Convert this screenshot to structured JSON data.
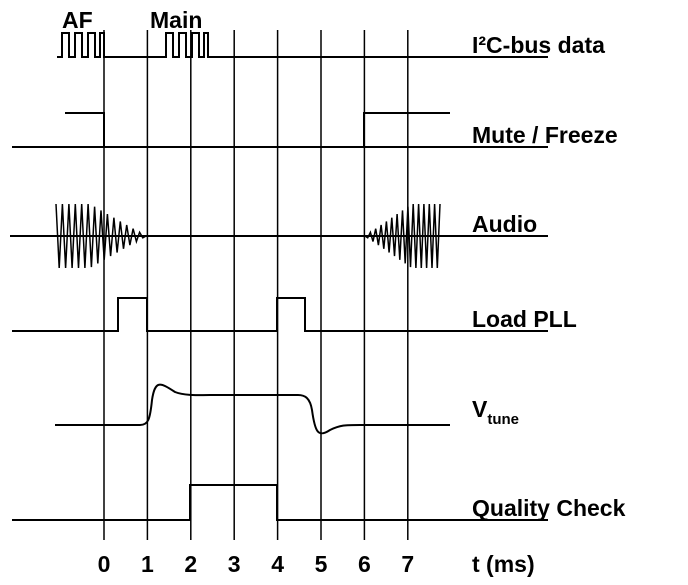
{
  "markers": [
    "AF",
    "Main"
  ],
  "signals": [
    {
      "label": "I²C-bus data"
    },
    {
      "label": "Mute / Freeze"
    },
    {
      "label": "Audio"
    },
    {
      "label": "Load PLL"
    },
    {
      "label": "V",
      "subscript": "tune"
    },
    {
      "label": "Quality Check"
    }
  ],
  "axis": {
    "ticks": [
      0,
      1,
      2,
      3,
      4,
      5,
      6,
      7
    ],
    "label": "t (ms)"
  }
}
